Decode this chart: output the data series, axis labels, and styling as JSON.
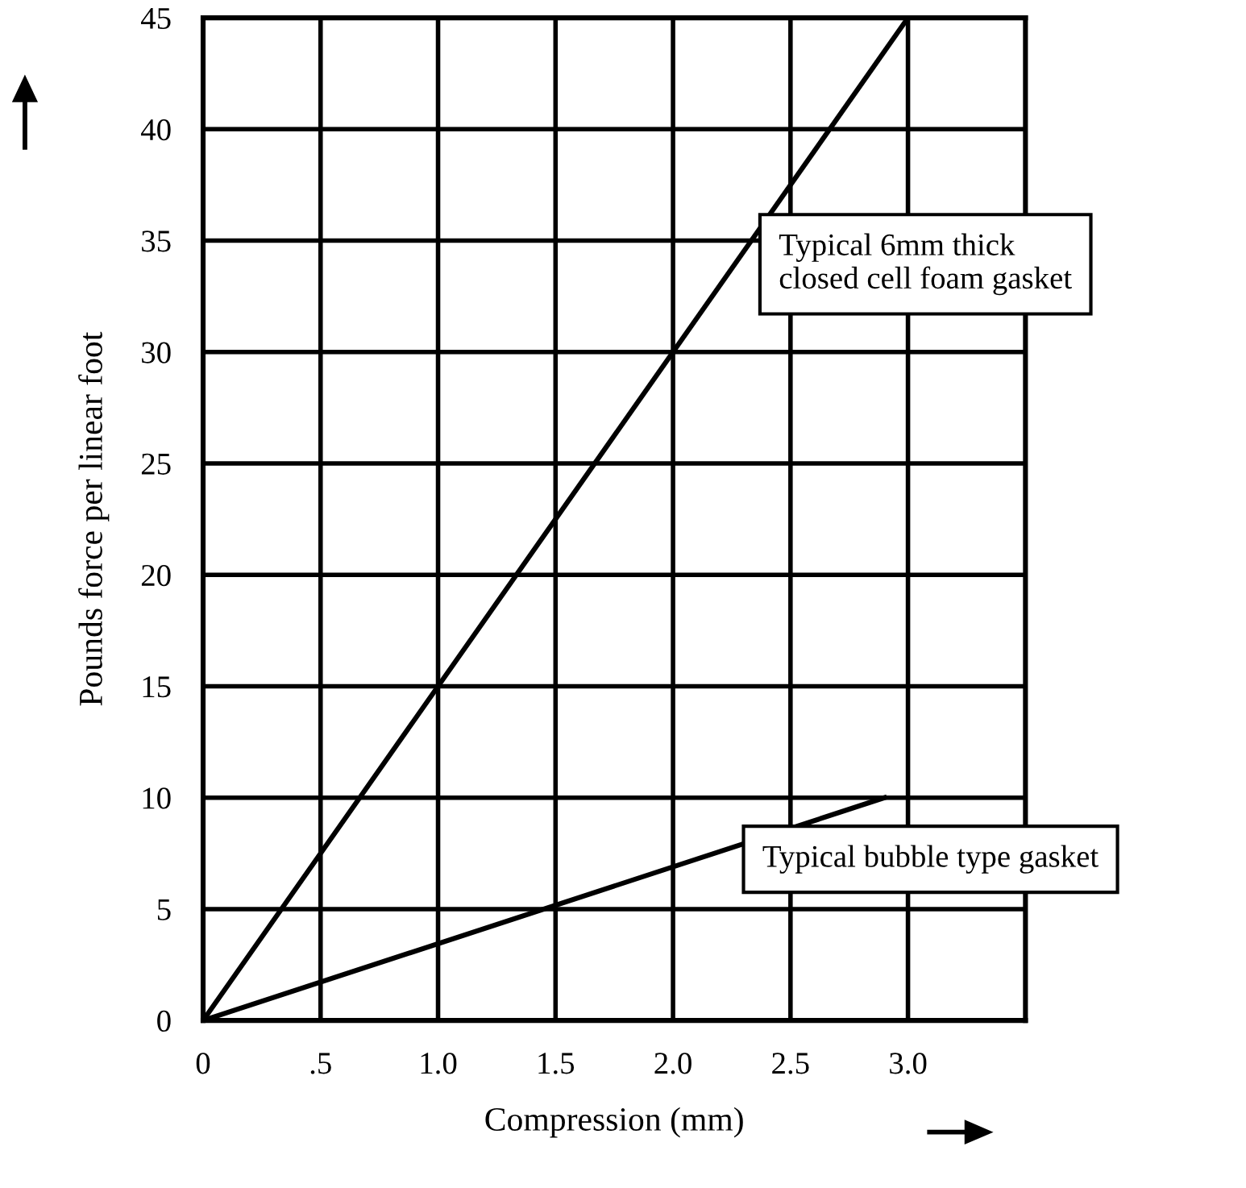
{
  "chart_data": {
    "type": "line",
    "xlabel": "Compression (mm)",
    "ylabel": "Pounds force per linear foot",
    "series": [
      {
        "color": "#000000",
        "x": [
          0,
          3.0
        ],
        "values": [
          0,
          45
        ]
      },
      {
        "color": "#000000",
        "x": [
          0,
          2.9
        ],
        "values": [
          0,
          10
        ]
      }
    ],
    "xlim": [
      0,
      3.5
    ],
    "xticks": [
      0,
      {
        "value": 0.5,
        "label": ".5"
      },
      {
        "value": 1.0,
        "label": "1.0"
      },
      1.5,
      {
        "value": 2.0,
        "label": "2.0"
      },
      2.5,
      {
        "value": 3.0,
        "label": "3.0"
      }
    ],
    "ylim": [
      0,
      45
    ],
    "yticks": [
      0,
      5,
      10,
      15,
      20,
      25,
      30,
      35,
      40,
      45
    ],
    "grid": true,
    "marker": "none",
    "line_style": "solid",
    "annotations": [
      "Typical 6mm thick\nclosed cell foam gasket",
      "Typical bubble type gasket"
    ]
  }
}
